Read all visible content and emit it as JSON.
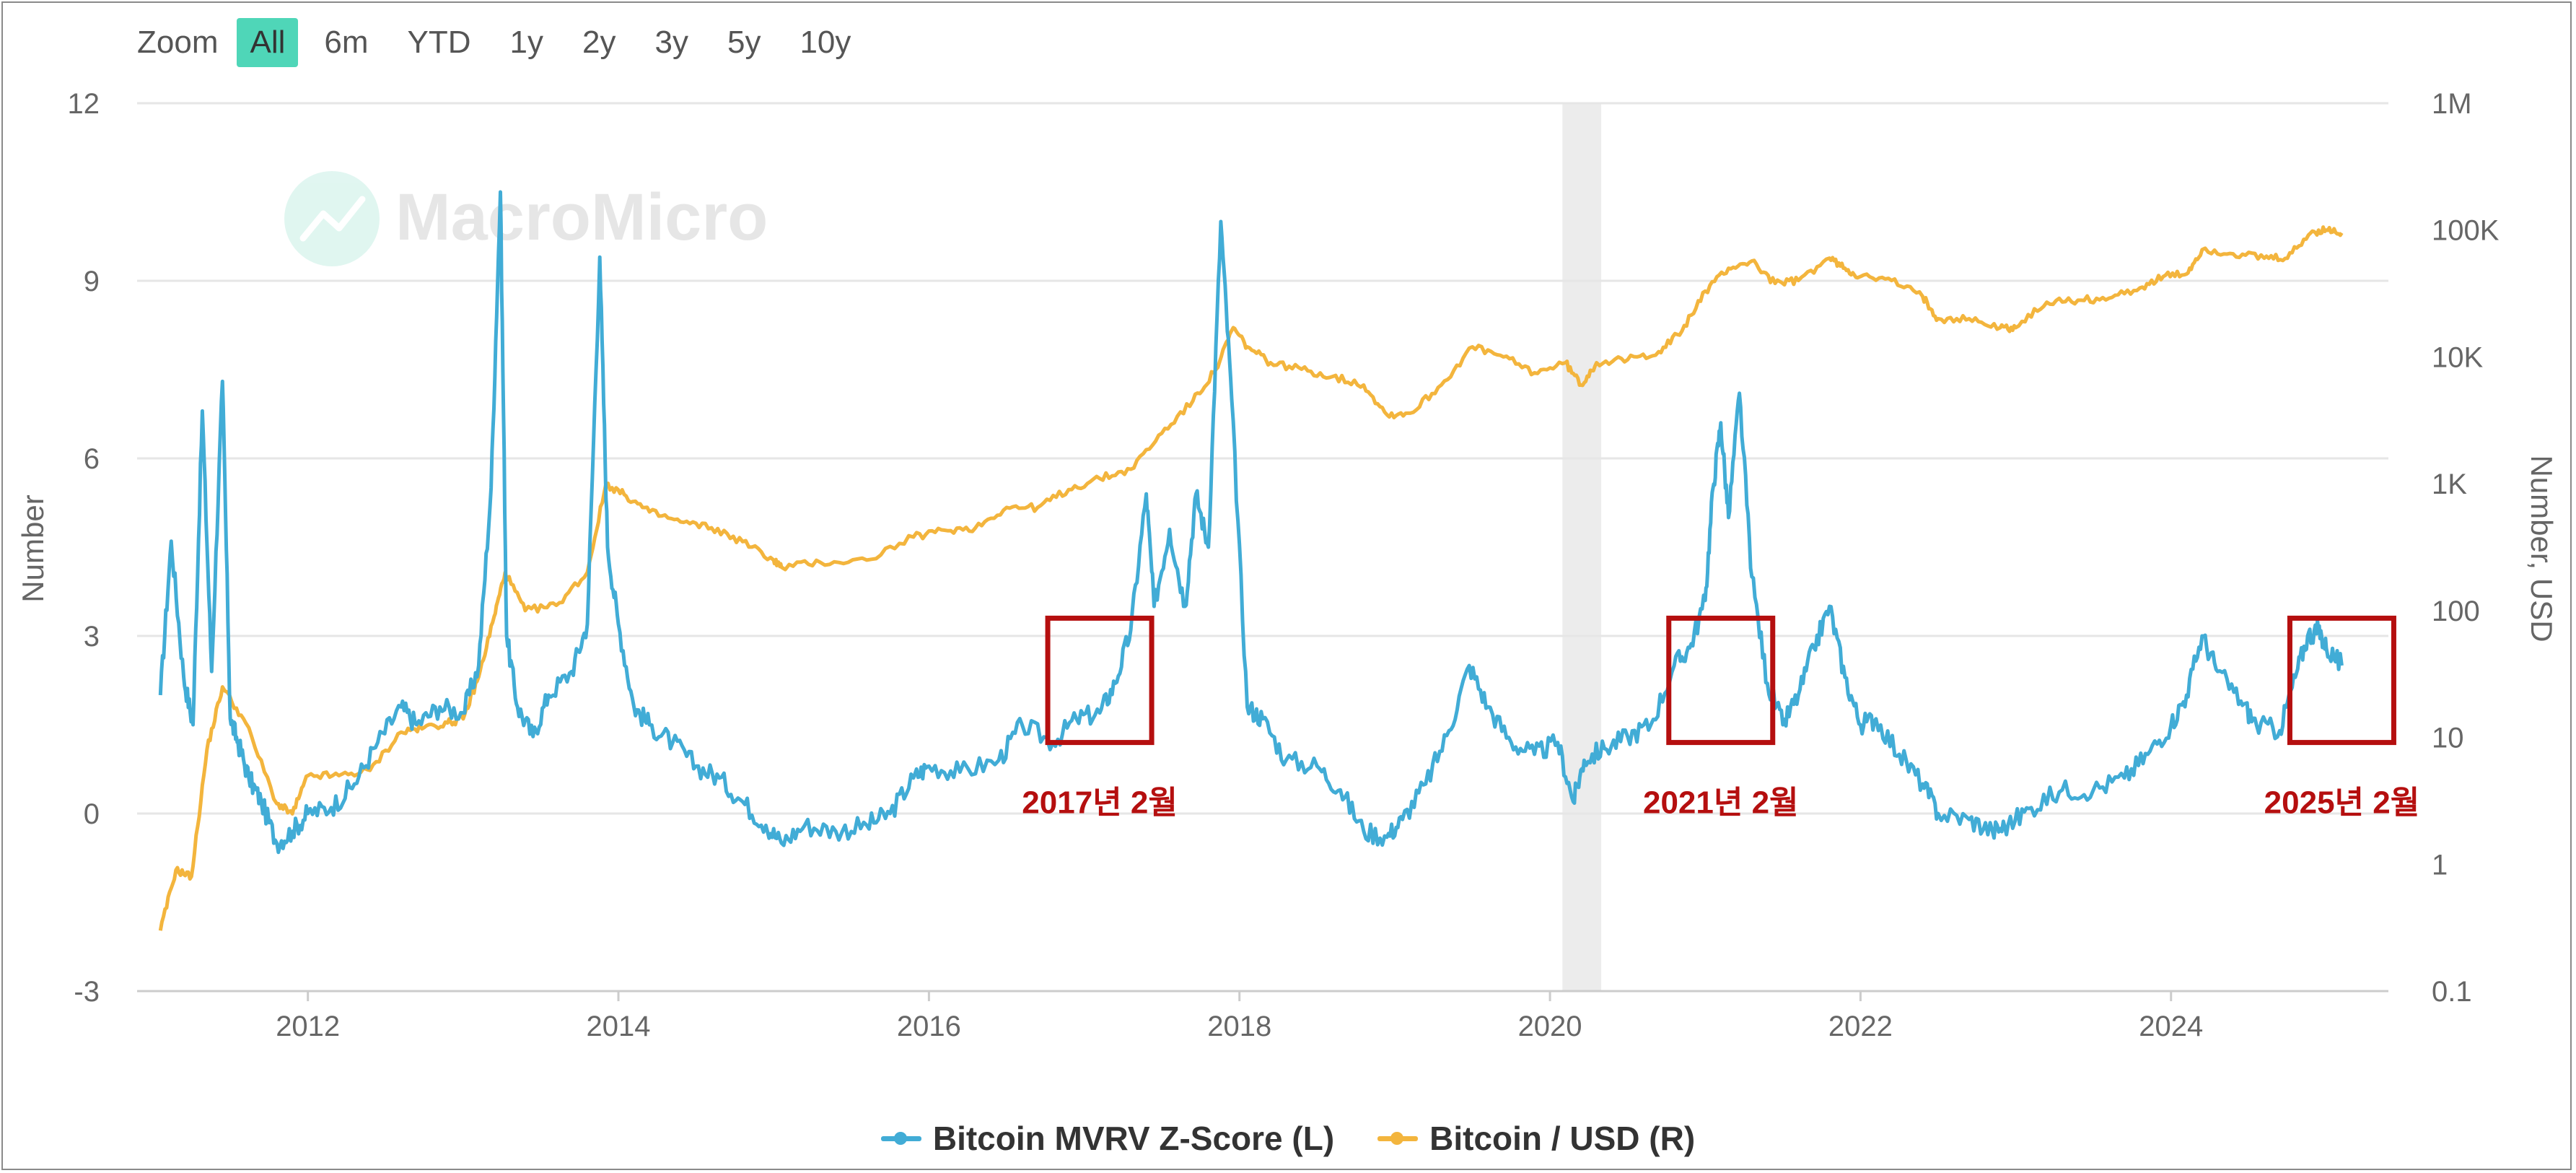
{
  "zoom": {
    "label": "Zoom",
    "buttons": [
      "All",
      "6m",
      "YTD",
      "1y",
      "2y",
      "3y",
      "5y",
      "10y"
    ],
    "active": "All"
  },
  "watermark": "MacroMicro",
  "annotations": [
    {
      "label": "2017년 2월",
      "date": 2017.1
    },
    {
      "label": "2021년 2월",
      "date": 2021.1
    },
    {
      "label": "2025년 2월",
      "date": 2025.1
    }
  ],
  "recession_band": {
    "start": 2020.08,
    "end": 2020.33
  },
  "colors": {
    "zscore": "#41acd6",
    "price": "#f3b53d",
    "annotation": "#b50f0f",
    "band": "#ececec",
    "grid": "#e6e6e6"
  },
  "chart_data": {
    "type": "line",
    "title": "",
    "xlabel": "",
    "ylabel_left": "Number",
    "ylabel_right": "Number, USD",
    "xlim": [
      2010.9,
      2025.4
    ],
    "x_ticks": [
      2012,
      2014,
      2016,
      2018,
      2020,
      2022,
      2024
    ],
    "x_tick_labels": [
      "2012",
      "2014",
      "2016",
      "2018",
      "2020",
      "2022",
      "2024"
    ],
    "ylim_left": [
      -3,
      12
    ],
    "y_ticks_left": [
      -3,
      0,
      3,
      6,
      9,
      12
    ],
    "y_tick_labels_left": [
      "-3",
      "0",
      "3",
      "6",
      "9",
      "12"
    ],
    "ylim_right_log": [
      0.1,
      1000000
    ],
    "y_ticks_right": [
      0.1,
      1,
      10,
      100,
      1000,
      10000,
      100000,
      1000000
    ],
    "y_tick_labels_right": [
      "0.1",
      "1",
      "10",
      "100",
      "1K",
      "10K",
      "100K",
      "1M"
    ],
    "series": [
      {
        "name": "Bitcoin MVRV Z-Score (L)",
        "axis": "left",
        "x": [
          2011.05,
          2011.12,
          2011.2,
          2011.26,
          2011.32,
          2011.38,
          2011.45,
          2011.5,
          2011.55,
          2011.62,
          2011.7,
          2011.8,
          2011.9,
          2012.0,
          2012.15,
          2012.3,
          2012.45,
          2012.6,
          2012.7,
          2012.85,
          2013.0,
          2013.1,
          2013.18,
          2013.24,
          2013.28,
          2013.35,
          2013.45,
          2013.55,
          2013.7,
          2013.8,
          2013.88,
          2013.93,
          2014.0,
          2014.1,
          2014.2,
          2014.35,
          2014.5,
          2014.65,
          2014.8,
          2014.95,
          2015.05,
          2015.2,
          2015.4,
          2015.6,
          2015.75,
          2015.9,
          2016.0,
          2016.2,
          2016.45,
          2016.6,
          2016.8,
          2016.95,
          2017.1,
          2017.2,
          2017.3,
          2017.4,
          2017.45,
          2017.55,
          2017.65,
          2017.72,
          2017.8,
          2017.88,
          2017.95,
          2018.05,
          2018.15,
          2018.3,
          2018.5,
          2018.65,
          2018.8,
          2018.95,
          2019.05,
          2019.2,
          2019.35,
          2019.48,
          2019.6,
          2019.75,
          2019.9,
          2020.05,
          2020.15,
          2020.22,
          2020.35,
          2020.5,
          2020.65,
          2020.8,
          2020.9,
          2021.0,
          2021.05,
          2021.1,
          2021.15,
          2021.22,
          2021.3,
          2021.4,
          2021.5,
          2021.6,
          2021.7,
          2021.8,
          2021.9,
          2022.0,
          2022.1,
          2022.25,
          2022.4,
          2022.5,
          2022.7,
          2022.85,
          2022.95,
          2023.1,
          2023.3,
          2023.5,
          2023.7,
          2023.85,
          2024.0,
          2024.1,
          2024.2,
          2024.3,
          2024.45,
          2024.55,
          2024.7,
          2024.8,
          2024.88,
          2024.95,
          2025.0,
          2025.1
        ],
        "values": [
          2.0,
          4.6,
          2.3,
          1.5,
          6.8,
          2.4,
          7.3,
          1.6,
          1.2,
          0.6,
          0.2,
          -0.5,
          -0.3,
          0.0,
          0.1,
          0.5,
          1.2,
          1.8,
          1.5,
          1.8,
          1.7,
          2.5,
          5.5,
          10.5,
          3.0,
          1.8,
          1.3,
          2.0,
          2.4,
          3.2,
          9.4,
          4.5,
          3.2,
          1.8,
          1.5,
          1.2,
          0.8,
          0.6,
          0.2,
          -0.2,
          -0.5,
          -0.2,
          -0.3,
          -0.2,
          0.0,
          0.6,
          0.8,
          0.7,
          0.9,
          1.5,
          1.2,
          1.6,
          1.7,
          2.2,
          3.1,
          5.4,
          3.5,
          4.8,
          3.5,
          5.4,
          4.5,
          10.0,
          7.0,
          1.8,
          1.6,
          0.9,
          0.8,
          0.4,
          -0.3,
          -0.4,
          -0.1,
          0.5,
          1.4,
          2.5,
          1.8,
          1.2,
          1.0,
          1.2,
          0.2,
          0.9,
          1.1,
          1.3,
          1.5,
          2.5,
          2.8,
          3.6,
          5.5,
          6.6,
          5.0,
          7.1,
          4.0,
          2.2,
          1.5,
          2.0,
          2.8,
          3.5,
          2.3,
          1.5,
          1.6,
          1.0,
          0.5,
          0.0,
          -0.1,
          -0.3,
          -0.2,
          0.1,
          0.4,
          0.4,
          0.6,
          1.0,
          1.5,
          2.0,
          3.0,
          2.4,
          1.9,
          1.5,
          1.4,
          2.3,
          3.0,
          3.1,
          2.8,
          2.5
        ]
      },
      {
        "name": "Bitcoin / USD (R)",
        "axis": "right",
        "x": [
          2011.05,
          2011.15,
          2011.25,
          2011.35,
          2011.45,
          2011.6,
          2011.8,
          2011.9,
          2012.0,
          2012.2,
          2012.4,
          2012.6,
          2012.75,
          2012.9,
          2013.0,
          2013.1,
          2013.2,
          2013.27,
          2013.4,
          2013.6,
          2013.8,
          2013.92,
          2014.05,
          2014.2,
          2014.4,
          2014.6,
          2014.8,
          2015.0,
          2015.05,
          2015.3,
          2015.6,
          2015.9,
          2016.1,
          2016.3,
          2016.5,
          2016.7,
          2016.9,
          2017.1,
          2017.3,
          2017.5,
          2017.7,
          2017.85,
          2017.96,
          2018.05,
          2018.2,
          2018.4,
          2018.6,
          2018.8,
          2018.95,
          2019.1,
          2019.3,
          2019.5,
          2019.7,
          2019.9,
          2020.1,
          2020.2,
          2020.3,
          2020.5,
          2020.7,
          2020.85,
          2021.0,
          2021.15,
          2021.3,
          2021.45,
          2021.6,
          2021.8,
          2021.9,
          2022.0,
          2022.2,
          2022.4,
          2022.5,
          2022.7,
          2022.9,
          2023.0,
          2023.2,
          2023.4,
          2023.6,
          2023.8,
          2023.95,
          2024.1,
          2024.2,
          2024.4,
          2024.6,
          2024.75,
          2024.9,
          2025.0,
          2025.1
        ],
        "values": [
          0.3,
          0.9,
          0.8,
          8,
          25,
          13,
          3,
          2.5,
          5,
          5,
          5.5,
          11,
          12,
          13,
          14,
          30,
          90,
          200,
          100,
          110,
          200,
          1000,
          800,
          600,
          500,
          450,
          350,
          250,
          220,
          240,
          250,
          380,
          430,
          450,
          650,
          650,
          900,
          1100,
          1300,
          2500,
          4500,
          8000,
          17000,
          12000,
          9000,
          8000,
          7000,
          6000,
          3500,
          3600,
          6000,
          12000,
          10000,
          7500,
          9000,
          6000,
          9000,
          9500,
          11000,
          16000,
          33000,
          50000,
          57000,
          38000,
          40000,
          60000,
          50000,
          43000,
          40000,
          30000,
          20000,
          20000,
          17000,
          17000,
          27000,
          28000,
          29000,
          35000,
          43000,
          45000,
          70000,
          65000,
          60000,
          60000,
          95000,
          100000,
          95000
        ]
      }
    ]
  },
  "legend": [
    {
      "label": "Bitcoin MVRV Z-Score (L)",
      "color": "#41acd6"
    },
    {
      "label": "Bitcoin / USD (R)",
      "color": "#f3b53d"
    }
  ]
}
